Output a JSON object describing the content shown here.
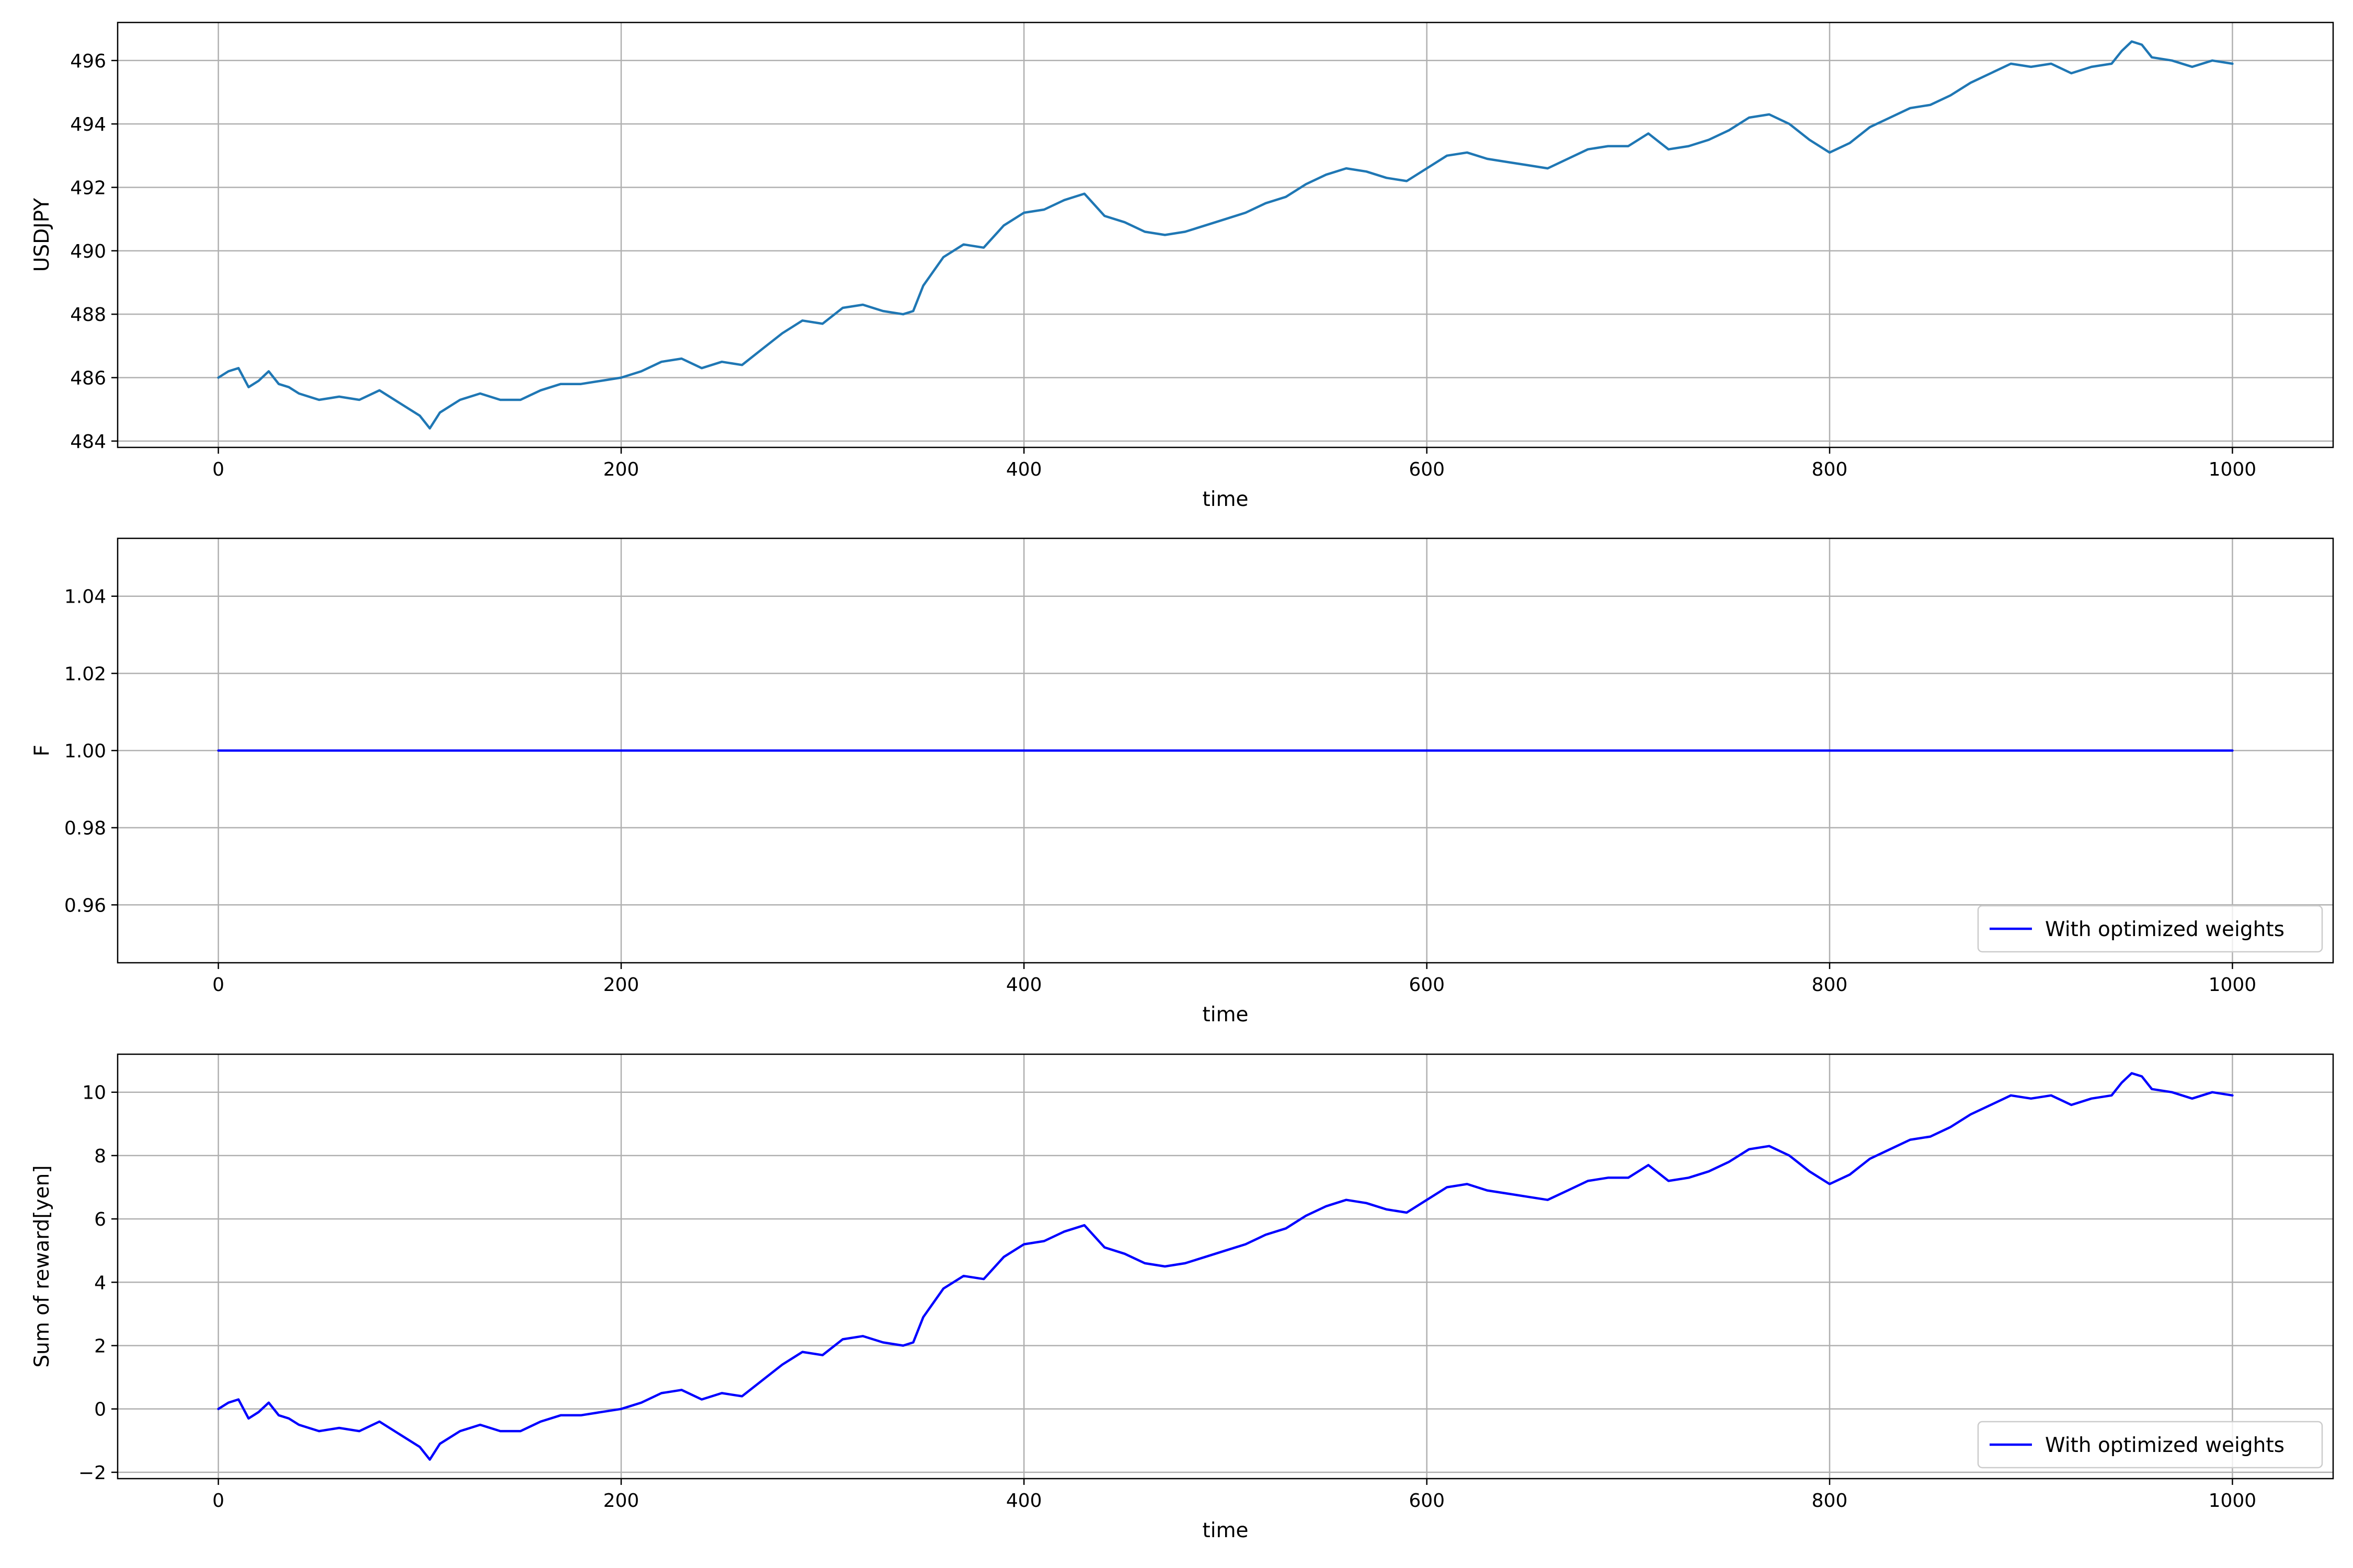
{
  "chart_data": [
    {
      "type": "line",
      "xlabel": "time",
      "ylabel": "USDJPY",
      "xlim": [
        -50,
        1050
      ],
      "ylim": [
        483.8,
        497.2
      ],
      "xticks": [
        0,
        200,
        400,
        600,
        800,
        1000
      ],
      "yticks": [
        484,
        486,
        488,
        490,
        492,
        494,
        496
      ],
      "tick_decimals": 0,
      "grid": true,
      "legend": null,
      "series": [
        {
          "color": "#1f77b4",
          "x": [
            0,
            5,
            10,
            15,
            20,
            25,
            30,
            35,
            40,
            50,
            60,
            70,
            80,
            90,
            100,
            105,
            110,
            120,
            130,
            140,
            150,
            160,
            170,
            180,
            190,
            200,
            210,
            220,
            230,
            240,
            250,
            260,
            270,
            280,
            290,
            300,
            310,
            320,
            330,
            340,
            345,
            350,
            360,
            370,
            380,
            390,
            400,
            410,
            420,
            430,
            440,
            450,
            460,
            470,
            480,
            490,
            500,
            510,
            520,
            530,
            540,
            550,
            560,
            570,
            580,
            590,
            600,
            610,
            620,
            630,
            640,
            650,
            660,
            670,
            680,
            690,
            700,
            710,
            720,
            730,
            740,
            750,
            760,
            770,
            780,
            790,
            800,
            810,
            820,
            830,
            840,
            850,
            860,
            870,
            880,
            890,
            900,
            910,
            920,
            930,
            940,
            945,
            950,
            955,
            960,
            970,
            980,
            990,
            1000
          ],
          "y": [
            486.0,
            486.2,
            486.3,
            485.7,
            485.9,
            486.2,
            485.8,
            485.7,
            485.5,
            485.3,
            485.4,
            485.3,
            485.6,
            485.2,
            484.8,
            484.4,
            484.9,
            485.3,
            485.5,
            485.3,
            485.3,
            485.6,
            485.8,
            485.8,
            485.9,
            486.0,
            486.2,
            486.5,
            486.6,
            486.3,
            486.5,
            486.4,
            486.9,
            487.4,
            487.8,
            487.7,
            488.2,
            488.3,
            488.1,
            488.0,
            488.1,
            488.9,
            489.8,
            490.2,
            490.1,
            490.8,
            491.2,
            491.3,
            491.6,
            491.8,
            491.1,
            490.9,
            490.6,
            490.5,
            490.6,
            490.8,
            491.0,
            491.2,
            491.5,
            491.7,
            492.1,
            492.4,
            492.6,
            492.5,
            492.3,
            492.2,
            492.6,
            493.0,
            493.1,
            492.9,
            492.8,
            492.7,
            492.6,
            492.9,
            493.2,
            493.3,
            493.3,
            493.7,
            493.2,
            493.3,
            493.5,
            493.8,
            494.2,
            494.3,
            494.0,
            493.5,
            493.1,
            493.4,
            493.9,
            494.2,
            494.5,
            494.6,
            494.9,
            495.3,
            495.6,
            495.9,
            495.8,
            495.9,
            495.6,
            495.8,
            495.9,
            496.3,
            496.6,
            496.5,
            496.1,
            496.0,
            495.8,
            496.0,
            495.9
          ]
        }
      ]
    },
    {
      "type": "line",
      "xlabel": "time",
      "ylabel": "F",
      "xlim": [
        -50,
        1050
      ],
      "ylim": [
        0.945,
        1.055
      ],
      "xticks": [
        0,
        200,
        400,
        600,
        800,
        1000
      ],
      "yticks": [
        0.96,
        0.98,
        1.0,
        1.02,
        1.04
      ],
      "tick_decimals": 2,
      "grid": true,
      "legend": "lower-right",
      "series": [
        {
          "name": "With optimized weights",
          "color": "#0000ff",
          "x": [
            0,
            1000
          ],
          "y": [
            1.0,
            1.0
          ]
        }
      ]
    },
    {
      "type": "line",
      "xlabel": "time",
      "ylabel": "Sum of reward[yen]",
      "xlim": [
        -50,
        1050
      ],
      "ylim": [
        -2.2,
        11.2
      ],
      "xticks": [
        0,
        200,
        400,
        600,
        800,
        1000
      ],
      "yticks": [
        -2,
        0,
        2,
        4,
        6,
        8,
        10
      ],
      "tick_decimals": 0,
      "grid": true,
      "legend": "lower-right",
      "series": [
        {
          "name": "With optimized weights",
          "color": "#0000ff",
          "x": [
            0,
            5,
            10,
            15,
            20,
            25,
            30,
            35,
            40,
            50,
            60,
            70,
            80,
            90,
            100,
            105,
            110,
            120,
            130,
            140,
            150,
            160,
            170,
            180,
            190,
            200,
            210,
            220,
            230,
            240,
            250,
            260,
            270,
            280,
            290,
            300,
            310,
            320,
            330,
            340,
            345,
            350,
            360,
            370,
            380,
            390,
            400,
            410,
            420,
            430,
            440,
            450,
            460,
            470,
            480,
            490,
            500,
            510,
            520,
            530,
            540,
            550,
            560,
            570,
            580,
            590,
            600,
            610,
            620,
            630,
            640,
            650,
            660,
            670,
            680,
            690,
            700,
            710,
            720,
            730,
            740,
            750,
            760,
            770,
            780,
            790,
            800,
            810,
            820,
            830,
            840,
            850,
            860,
            870,
            880,
            890,
            900,
            910,
            920,
            930,
            940,
            945,
            950,
            955,
            960,
            970,
            980,
            990,
            1000
          ],
          "y": [
            0.0,
            0.2,
            0.3,
            -0.3,
            -0.1,
            0.2,
            -0.2,
            -0.3,
            -0.5,
            -0.7,
            -0.6,
            -0.7,
            -0.4,
            -0.8,
            -1.2,
            -1.6,
            -1.1,
            -0.7,
            -0.5,
            -0.7,
            -0.7,
            -0.4,
            -0.2,
            -0.2,
            -0.1,
            0.0,
            0.2,
            0.5,
            0.6,
            0.3,
            0.5,
            0.4,
            0.9,
            1.4,
            1.8,
            1.7,
            2.2,
            2.3,
            2.1,
            2.0,
            2.1,
            2.9,
            3.8,
            4.2,
            4.1,
            4.8,
            5.2,
            5.3,
            5.6,
            5.8,
            5.1,
            4.9,
            4.6,
            4.5,
            4.6,
            4.8,
            5.0,
            5.2,
            5.5,
            5.7,
            6.1,
            6.4,
            6.6,
            6.5,
            6.3,
            6.2,
            6.6,
            7.0,
            7.1,
            6.9,
            6.8,
            6.7,
            6.6,
            6.9,
            7.2,
            7.3,
            7.3,
            7.7,
            7.2,
            7.3,
            7.5,
            7.8,
            8.2,
            8.3,
            8.0,
            7.5,
            7.1,
            7.4,
            7.9,
            8.2,
            8.5,
            8.6,
            8.9,
            9.3,
            9.6,
            9.9,
            9.8,
            9.9,
            9.6,
            9.8,
            9.9,
            10.3,
            10.6,
            10.5,
            10.1,
            10.0,
            9.8,
            10.0,
            9.9
          ]
        }
      ]
    }
  ]
}
